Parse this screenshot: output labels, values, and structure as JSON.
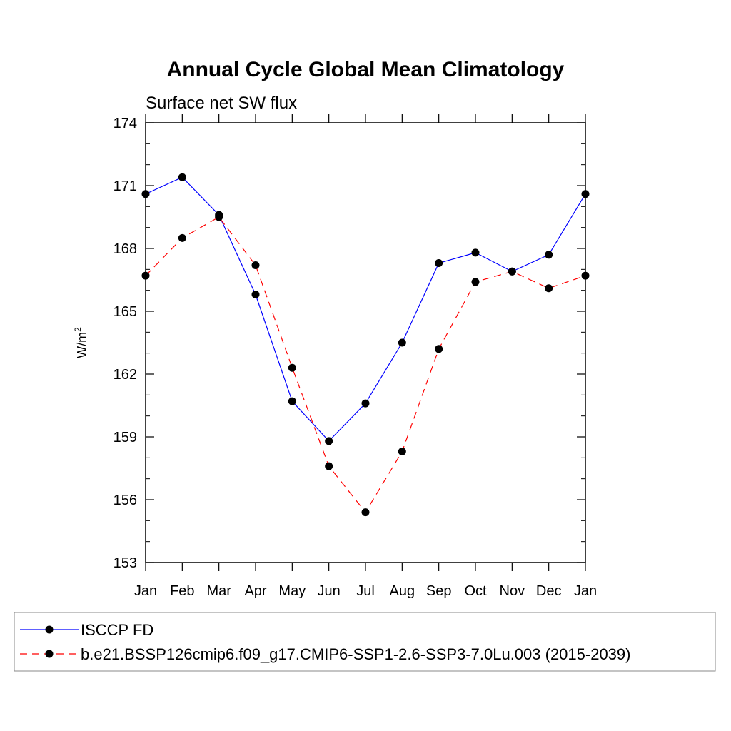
{
  "chart_data": {
    "type": "line",
    "title": "Annual Cycle Global Mean Climatology",
    "subtitle": "Surface net SW flux",
    "ylabel": "W/m",
    "ylabel_superscript": "2",
    "ylim": [
      153,
      174
    ],
    "yticks": [
      153,
      156,
      159,
      162,
      165,
      168,
      171,
      174
    ],
    "categories": [
      "Jan",
      "Feb",
      "Mar",
      "Apr",
      "May",
      "Jun",
      "Jul",
      "Aug",
      "Sep",
      "Oct",
      "Nov",
      "Dec",
      "Jan"
    ],
    "legend_position": "bottom",
    "series": [
      {
        "name": "ISCCP FD",
        "color": "#0000ff",
        "dashed": false,
        "values": [
          170.6,
          171.4,
          169.6,
          165.8,
          160.7,
          158.8,
          160.6,
          163.5,
          167.3,
          167.8,
          166.9,
          167.7,
          170.6
        ]
      },
      {
        "name": "b.e21.BSSP126cmip6.f09_g17.CMIP6-SSP1-2.6-SSP3-7.0Lu.003 (2015-2039)",
        "color": "#ff0000",
        "dashed": true,
        "values": [
          166.7,
          168.5,
          169.5,
          167.2,
          162.3,
          157.6,
          155.4,
          158.3,
          163.2,
          166.4,
          166.9,
          166.1,
          166.7
        ]
      }
    ]
  }
}
